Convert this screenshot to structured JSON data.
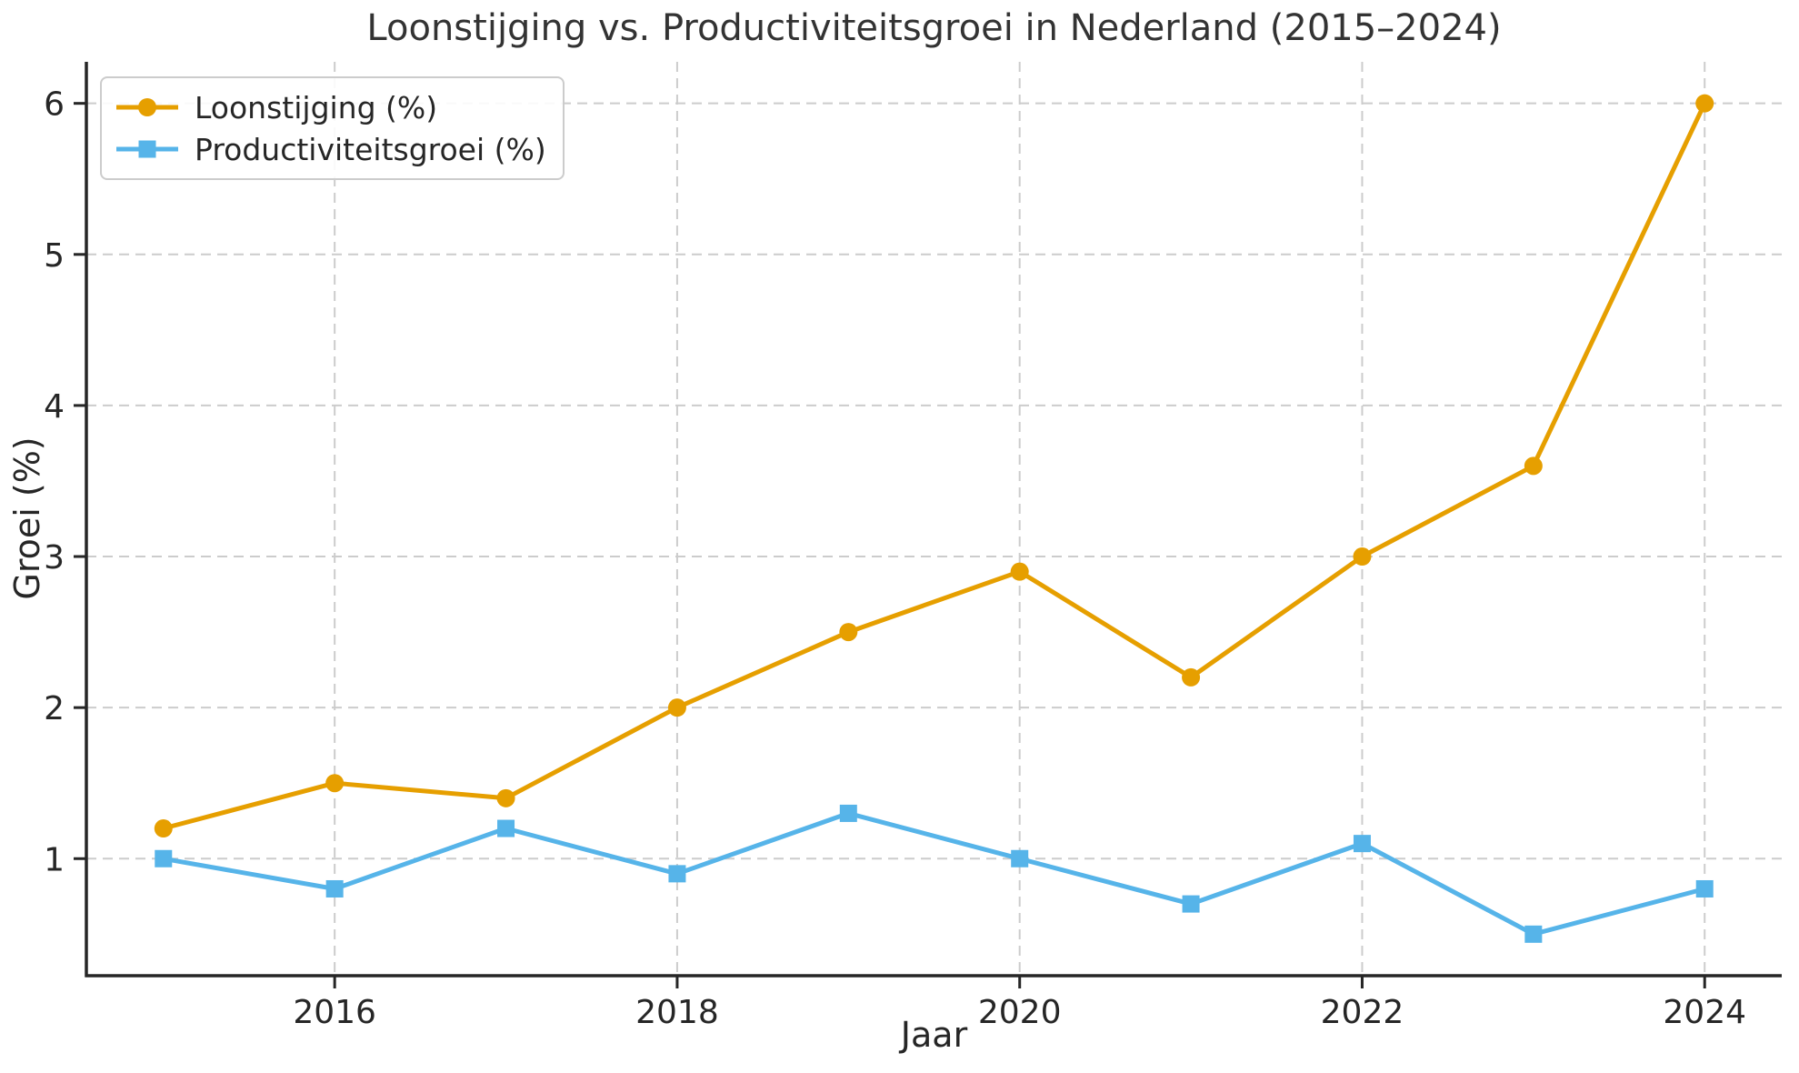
{
  "chart_data": {
    "type": "line",
    "title": "Loonstijging vs. Productiviteitsgroei in Nederland (2015–2024)",
    "xlabel": "Jaar",
    "ylabel": "Groei (%)",
    "x": [
      2015,
      2016,
      2017,
      2018,
      2019,
      2020,
      2021,
      2022,
      2023,
      2024
    ],
    "series": [
      {
        "name": "Loonstijging (%)",
        "color": "#E69F00",
        "marker": "circle",
        "values": [
          1.2,
          1.5,
          1.4,
          2.0,
          2.5,
          2.9,
          2.2,
          3.0,
          3.6,
          6.0
        ]
      },
      {
        "name": "Productiviteitsgroei (%)",
        "color": "#56B4E9",
        "marker": "square",
        "values": [
          1.0,
          0.8,
          1.2,
          0.9,
          1.3,
          1.0,
          0.7,
          1.1,
          0.5,
          0.8
        ]
      }
    ],
    "xticks": [
      2016,
      2018,
      2020,
      2022,
      2024
    ],
    "yticks": [
      1,
      2,
      3,
      4,
      5,
      6
    ],
    "xlim": [
      2014.55,
      2024.45
    ],
    "ylim": [
      0.225,
      6.275
    ],
    "grid": true,
    "legend_position": "upper-left",
    "colors": {
      "grid": "#cccccc",
      "spine": "#262626",
      "tick_text": "#262626",
      "title_text": "#333333",
      "background": "#ffffff"
    }
  }
}
